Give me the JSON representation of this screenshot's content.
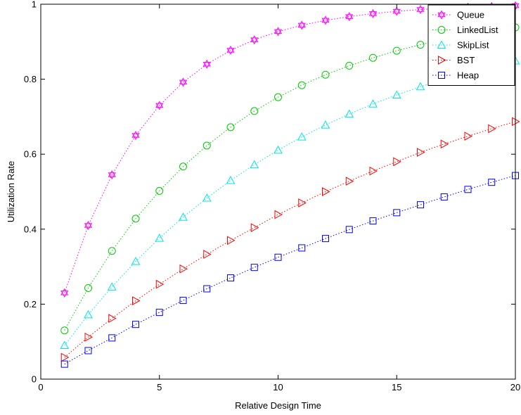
{
  "chart_data": {
    "type": "line",
    "xlabel": "Relative Design Time",
    "ylabel": "Utilization Rate",
    "xlim": [
      0,
      20
    ],
    "ylim": [
      0,
      1
    ],
    "xticks": [
      0,
      5,
      10,
      15,
      20
    ],
    "yticks": [
      0,
      0.2,
      0.4,
      0.6,
      0.8,
      1
    ],
    "xtick_labels": [
      "0",
      "5",
      "10",
      "15",
      "20"
    ],
    "ytick_labels": [
      "0",
      "0.2",
      "0.4",
      "0.6",
      "0.8",
      "1"
    ],
    "grid": false,
    "legend_position": "top-right",
    "x": [
      1,
      2,
      3,
      4,
      5,
      6,
      7,
      8,
      9,
      10,
      11,
      12,
      13,
      14,
      15,
      16,
      17,
      18,
      19,
      20
    ],
    "series": [
      {
        "name": "Queue",
        "color": "#ff00ff",
        "marker": "hexagram",
        "values": [
          0.23,
          0.41,
          0.545,
          0.65,
          0.73,
          0.792,
          0.84,
          0.877,
          0.905,
          0.927,
          0.944,
          0.957,
          0.967,
          0.975,
          0.981,
          0.986,
          0.989,
          0.992,
          0.994,
          0.996
        ]
      },
      {
        "name": "LinkedList",
        "color": "#00cc00",
        "marker": "circle",
        "values": [
          0.13,
          0.243,
          0.342,
          0.428,
          0.502,
          0.567,
          0.623,
          0.672,
          0.715,
          0.752,
          0.784,
          0.812,
          0.836,
          0.857,
          0.876,
          0.892,
          0.906,
          0.918,
          0.929,
          0.938
        ]
      },
      {
        "name": "SkipList",
        "color": "#00e5e5",
        "marker": "triangle-up",
        "values": [
          0.09,
          0.172,
          0.246,
          0.314,
          0.376,
          0.432,
          0.483,
          0.53,
          0.572,
          0.611,
          0.646,
          0.678,
          0.707,
          0.734,
          0.758,
          0.78,
          0.8,
          0.818,
          0.834,
          0.849
        ]
      },
      {
        "name": "BST",
        "color": "#ff0000",
        "marker": "triangle-right",
        "values": [
          0.058,
          0.112,
          0.162,
          0.209,
          0.253,
          0.294,
          0.333,
          0.37,
          0.404,
          0.439,
          0.47,
          0.5,
          0.528,
          0.555,
          0.58,
          0.605,
          0.627,
          0.648,
          0.668,
          0.687
        ]
      },
      {
        "name": "Heap",
        "color": "#0000ff",
        "marker": "square",
        "values": [
          0.04,
          0.076,
          0.11,
          0.146,
          0.178,
          0.21,
          0.241,
          0.27,
          0.298,
          0.325,
          0.35,
          0.375,
          0.399,
          0.422,
          0.444,
          0.465,
          0.486,
          0.506,
          0.525,
          0.543
        ]
      }
    ]
  }
}
